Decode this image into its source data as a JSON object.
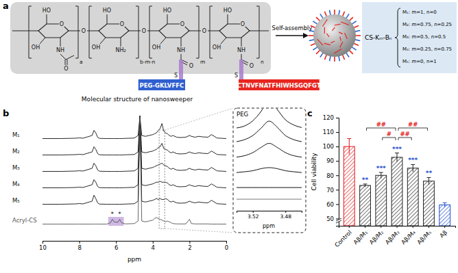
{
  "panel_labels": [
    "a",
    "b",
    "c"
  ],
  "diagram": {
    "units": [
      {
        "top": "HO",
        "left": "OH",
        "bottom": "NH",
        "carbonyl": "O",
        "subscript": "a"
      },
      {
        "top": "HO",
        "left": "OH",
        "bottom": "NH₂",
        "subscript": "b-m-n"
      },
      {
        "top": "HO",
        "left": "OH",
        "bottom": "NH",
        "carbonyl": "O",
        "linker": "S",
        "sequence": "PEG-GKLVFFC",
        "color": "#2f5fd0",
        "subscript": "m"
      },
      {
        "top": "HO",
        "left": "OH",
        "bottom": "NH",
        "carbonyl": "O",
        "linker": "S",
        "sequence": "CTNVFNATFHIWHSGQFGT",
        "color": "#e8251f",
        "subscript": "n"
      }
    ],
    "ring_atom": "O",
    "caption": "Molecular structure of nanosweeper",
    "arrow_label": "Self-assembly",
    "formula": "CS-Kₘ-Bₙ",
    "variants": [
      "M₁: m=1, n=0",
      "M₂: m=0.75, n=0.25",
      "M₃: m=0.5, n=0.5",
      "M₄: m=0.25, n=0.75",
      "M₅: m=0, n=1"
    ]
  },
  "chart_data": [
    {
      "type": "line",
      "xlabel": "ppm",
      "xlim": [
        10,
        0
      ],
      "xticks": [
        10,
        8,
        6,
        4,
        2,
        0
      ],
      "ylim": [
        0,
        7
      ],
      "tick_labels": "x",
      "x": [
        10,
        9,
        8.2,
        8,
        7.8,
        7.3,
        7.2,
        7.1,
        7,
        6.9,
        6.5,
        6.3,
        6.2,
        6.1,
        5.9,
        5.8,
        5.7,
        5.5,
        5,
        4.8,
        4.7,
        4.6,
        4.4,
        4.2,
        4,
        3.9,
        3.8,
        3.7,
        3.6,
        3.5,
        3.4,
        3.3,
        3.2,
        3.1,
        3,
        2.9,
        2.7,
        2.5,
        2.2,
        2,
        1.9,
        1.7,
        1.5,
        1.3,
        1,
        0.8,
        0.5,
        0
      ],
      "series": [
        {
          "name": "M₁",
          "color": "#111111",
          "values": [
            0.02,
            0.02,
            0.04,
            0.06,
            0.04,
            0.2,
            0.5,
            0.35,
            0.1,
            0.03,
            0.02,
            0.02,
            0.02,
            0.02,
            0.02,
            0.02,
            0.02,
            0.03,
            0.05,
            0.2,
            1.3,
            0.2,
            0.15,
            0.2,
            0.25,
            0.3,
            0.35,
            0.5,
            0.6,
            0.9,
            0.45,
            0.35,
            0.3,
            0.2,
            0.15,
            0.2,
            0.1,
            0.08,
            0.1,
            0.2,
            0.15,
            0.1,
            0.15,
            0.12,
            0.1,
            0.25,
            0.05,
            0.02
          ]
        },
        {
          "name": "M₂",
          "color": "#111111",
          "values": [
            0.02,
            0.02,
            0.04,
            0.06,
            0.04,
            0.2,
            0.5,
            0.35,
            0.1,
            0.03,
            0.02,
            0.02,
            0.02,
            0.02,
            0.02,
            0.02,
            0.02,
            0.03,
            0.05,
            0.2,
            2.3,
            0.2,
            0.15,
            0.2,
            0.25,
            0.3,
            0.35,
            0.45,
            0.5,
            0.7,
            0.4,
            0.35,
            0.3,
            0.2,
            0.15,
            0.2,
            0.1,
            0.08,
            0.1,
            0.2,
            0.15,
            0.1,
            0.15,
            0.12,
            0.1,
            0.25,
            0.05,
            0.02
          ]
        },
        {
          "name": "M₃",
          "color": "#111111",
          "values": [
            0.02,
            0.02,
            0.04,
            0.06,
            0.04,
            0.2,
            0.5,
            0.35,
            0.1,
            0.03,
            0.02,
            0.02,
            0.02,
            0.02,
            0.02,
            0.02,
            0.02,
            0.03,
            0.05,
            0.2,
            3.2,
            0.2,
            0.15,
            0.2,
            0.25,
            0.3,
            0.35,
            0.4,
            0.45,
            0.5,
            0.4,
            0.35,
            0.3,
            0.2,
            0.15,
            0.2,
            0.1,
            0.08,
            0.1,
            0.2,
            0.15,
            0.1,
            0.15,
            0.12,
            0.1,
            0.25,
            0.05,
            0.02
          ]
        },
        {
          "name": "M₄",
          "color": "#111111",
          "values": [
            0.02,
            0.02,
            0.04,
            0.06,
            0.04,
            0.2,
            0.5,
            0.35,
            0.1,
            0.03,
            0.02,
            0.02,
            0.02,
            0.02,
            0.02,
            0.02,
            0.02,
            0.03,
            0.05,
            0.2,
            4.2,
            0.2,
            0.15,
            0.2,
            0.25,
            0.3,
            0.35,
            0.35,
            0.4,
            0.35,
            0.35,
            0.35,
            0.3,
            0.2,
            0.15,
            0.2,
            0.1,
            0.08,
            0.1,
            0.2,
            0.15,
            0.1,
            0.15,
            0.12,
            0.1,
            0.25,
            0.05,
            0.02
          ]
        },
        {
          "name": "M₅",
          "color": "#111111",
          "values": [
            0.02,
            0.02,
            0.04,
            0.06,
            0.04,
            0.2,
            0.55,
            0.35,
            0.1,
            0.03,
            0.02,
            0.02,
            0.02,
            0.02,
            0.02,
            0.02,
            0.02,
            0.03,
            0.05,
            0.2,
            5.2,
            0.2,
            0.15,
            0.2,
            0.25,
            0.3,
            0.35,
            0.3,
            0.35,
            0.3,
            0.3,
            0.35,
            0.3,
            0.2,
            0.15,
            0.2,
            0.1,
            0.08,
            0.1,
            0.2,
            0.15,
            0.1,
            0.15,
            0.12,
            0.1,
            0.25,
            0.05,
            0.02
          ]
        },
        {
          "name": "Acryl-CS",
          "color": "#555555",
          "values": [
            0.02,
            0.02,
            0.02,
            0.02,
            0.02,
            0.02,
            0.02,
            0.02,
            0.02,
            0.02,
            0.02,
            0.1,
            0.3,
            0.15,
            0.12,
            0.3,
            0.1,
            0.03,
            0.05,
            0.2,
            6.3,
            0.2,
            0.15,
            0.2,
            0.25,
            0.35,
            0.4,
            0.35,
            0.3,
            0.25,
            0.2,
            0.15,
            0.2,
            0.15,
            0.1,
            0.05,
            0.03,
            0.03,
            0.03,
            0.3,
            0.05,
            0.03,
            0.03,
            0.03,
            0.03,
            0.02,
            0.02,
            0.02
          ]
        }
      ],
      "annotations": [
        {
          "x": 6.2,
          "text": "*"
        },
        {
          "x": 5.8,
          "text": "*"
        }
      ]
    },
    {
      "type": "line",
      "title": "PEG",
      "xlabel": "ppm",
      "xlim": [
        3.54,
        3.46
      ],
      "xticks": [
        3.52,
        3.48
      ],
      "ylim": [
        0,
        3
      ],
      "tick_labels": "x",
      "x": [
        3.54,
        3.53,
        3.52,
        3.51,
        3.5,
        3.49,
        3.48,
        3.47,
        3.46
      ],
      "series": [
        {
          "color": "#111111",
          "values": [
            0.1,
            0.2,
            0.45,
            0.9,
            1.5,
            1.0,
            0.5,
            0.25,
            0.12
          ]
        },
        {
          "color": "#111111",
          "values": [
            0.1,
            0.2,
            0.4,
            0.75,
            1.1,
            0.8,
            0.4,
            0.2,
            0.1
          ]
        },
        {
          "color": "#111111",
          "values": [
            0.08,
            0.15,
            0.3,
            0.55,
            0.75,
            0.55,
            0.3,
            0.15,
            0.08
          ]
        },
        {
          "color": "#111111",
          "values": [
            0.06,
            0.1,
            0.15,
            0.25,
            0.3,
            0.25,
            0.15,
            0.1,
            0.06
          ]
        },
        {
          "color": "#111111",
          "values": [
            0.03,
            0.03,
            0.03,
            0.03,
            0.03,
            0.03,
            0.03,
            0.03,
            0.03
          ]
        },
        {
          "color": "#777777",
          "values": [
            0.03,
            0.03,
            0.03,
            0.03,
            0.03,
            0.03,
            0.03,
            0.03,
            0.03
          ]
        }
      ]
    },
    {
      "type": "bar",
      "ylabel": "Cell viability",
      "categories": [
        "Control",
        "Aβ/M₁",
        "Aβ/M₂",
        "Aβ/M₃",
        "Aβ/M₄",
        "Aβ/M₅",
        "Aβ"
      ],
      "values": [
        100,
        73,
        80,
        92.5,
        85,
        76,
        59.5
      ],
      "errors": [
        5.5,
        1,
        2,
        3,
        2.5,
        2.5,
        1.5
      ],
      "colors": [
        "#e31a1c",
        "#222222",
        "#222222",
        "#222222",
        "#222222",
        "#222222",
        "#1f4fd1"
      ],
      "ylim": [
        45,
        120
      ],
      "yticks": [
        50,
        60,
        70,
        80,
        90,
        100,
        110,
        120
      ],
      "annotations": [
        {
          "index": 1,
          "text": "**"
        },
        {
          "index": 2,
          "text": "***"
        },
        {
          "index": 3,
          "text": "***"
        },
        {
          "index": 4,
          "text": "***"
        },
        {
          "index": 5,
          "text": "**"
        }
      ],
      "comparisons": [
        {
          "from": 1,
          "to": 3,
          "text": "##"
        },
        {
          "from": 3,
          "to": 5,
          "text": "##"
        },
        {
          "from": 2,
          "to": 3,
          "text": "#"
        },
        {
          "from": 3,
          "to": 4,
          "text": "##"
        }
      ]
    }
  ]
}
